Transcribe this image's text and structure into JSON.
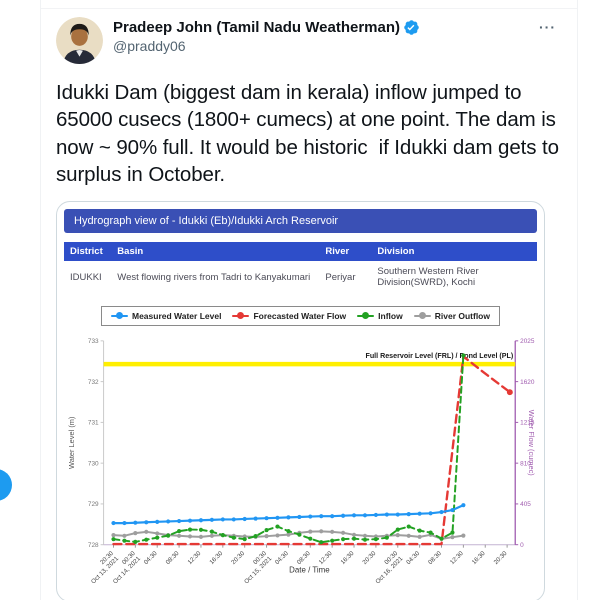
{
  "tweet": {
    "author": {
      "name": "Pradeep John (Tamil Nadu Weatherman)",
      "handle": "@praddy06"
    },
    "more_glyph": "···",
    "body": "Idukki Dam (biggest dam in kerala) inflow jumped to 65000 cusecs (1800+ cumecs) at one point. The dam is now ~ 90% full. It would be historic  if Idukki dam gets to surplus in October.",
    "accent_color": "#1d9bf0"
  },
  "media_card": {
    "banner": "Hydrograph view of - Idukki (Eb)/Idukki Arch Reservoir",
    "banner_color": "#3a50b5",
    "table": {
      "header_color": "#2e4ec9",
      "headers": [
        "District",
        "Basin",
        "River",
        "Division"
      ],
      "row": [
        "IDUKKI",
        "West flowing rivers from Tadri to Kanyakumari",
        "Periyar",
        "Southern Western River Division(SWRD), Kochi"
      ]
    }
  },
  "chart_data": {
    "type": "line",
    "xlabel": "Date / Time",
    "ylabel_left": "Water Level (m)",
    "ylabel_right": "Water Flow (cumec)",
    "left_axis": {
      "min": 728,
      "max": 733,
      "ticks": [
        728,
        729,
        730,
        731,
        732,
        733
      ],
      "color": "#777777"
    },
    "right_axis": {
      "min": 0,
      "max": 2025,
      "ticks": [
        0,
        405,
        810,
        1215,
        1620,
        2025
      ],
      "color": "#a05caf"
    },
    "frl": {
      "value": 732.43,
      "label": "Full Reservoir Level (FRL) / Pond Level (PL)",
      "color": "#ffef00"
    },
    "x_ticks": [
      {
        "h": 0,
        "t": "20:30",
        "d": "Oct 13, 2021"
      },
      {
        "h": 4,
        "t": "00:30",
        "d": "Oct 14, 2021"
      },
      {
        "h": 8,
        "t": "04:30"
      },
      {
        "h": 12,
        "t": "08:30"
      },
      {
        "h": 16,
        "t": "12:30"
      },
      {
        "h": 20,
        "t": "16:30"
      },
      {
        "h": 24,
        "t": "20:30"
      },
      {
        "h": 28,
        "t": "00:30",
        "d": "Oct 15, 2021"
      },
      {
        "h": 32,
        "t": "04:30"
      },
      {
        "h": 36,
        "t": "08:30"
      },
      {
        "h": 40,
        "t": "12:30"
      },
      {
        "h": 44,
        "t": "16:30"
      },
      {
        "h": 48,
        "t": "20:30"
      },
      {
        "h": 52,
        "t": "00:30",
        "d": "Oct 16, 2021"
      },
      {
        "h": 56,
        "t": "04:30"
      },
      {
        "h": 60,
        "t": "08:30"
      },
      {
        "h": 64,
        "t": "12:30"
      },
      {
        "h": 68,
        "t": "16:30"
      },
      {
        "h": 72,
        "t": "20:30"
      }
    ],
    "series": [
      {
        "name": "Measured Water Level",
        "color": "#2196f3",
        "axis": "left",
        "dash": "",
        "marker": "all",
        "width": 2.2,
        "points": [
          [
            0,
            728.53
          ],
          [
            2,
            728.53
          ],
          [
            4,
            728.54
          ],
          [
            6,
            728.55
          ],
          [
            8,
            728.56
          ],
          [
            10,
            728.57
          ],
          [
            12,
            728.58
          ],
          [
            14,
            728.59
          ],
          [
            16,
            728.6
          ],
          [
            18,
            728.61
          ],
          [
            20,
            728.62
          ],
          [
            22,
            728.62
          ],
          [
            24,
            728.63
          ],
          [
            26,
            728.64
          ],
          [
            28,
            728.65
          ],
          [
            30,
            728.66
          ],
          [
            32,
            728.67
          ],
          [
            34,
            728.68
          ],
          [
            36,
            728.69
          ],
          [
            38,
            728.7
          ],
          [
            40,
            728.7
          ],
          [
            42,
            728.71
          ],
          [
            44,
            728.72
          ],
          [
            46,
            728.72
          ],
          [
            48,
            728.73
          ],
          [
            50,
            728.74
          ],
          [
            52,
            728.74
          ],
          [
            54,
            728.75
          ],
          [
            56,
            728.76
          ],
          [
            58,
            728.77
          ],
          [
            60,
            728.8
          ],
          [
            62,
            728.85
          ],
          [
            64,
            728.97
          ]
        ]
      },
      {
        "name": "Forecasted Water Flow",
        "color": "#e53935",
        "axis": "right",
        "dash": "8,5",
        "marker": "last",
        "width": 2.4,
        "points": [
          [
            0,
            6
          ],
          [
            4,
            6
          ],
          [
            8,
            6
          ],
          [
            12,
            6
          ],
          [
            16,
            6
          ],
          [
            20,
            6
          ],
          [
            24,
            6
          ],
          [
            28,
            6
          ],
          [
            32,
            6
          ],
          [
            36,
            6
          ],
          [
            40,
            6
          ],
          [
            44,
            6
          ],
          [
            48,
            6
          ],
          [
            52,
            6
          ],
          [
            56,
            6
          ],
          [
            60,
            6
          ],
          [
            64,
            1870
          ],
          [
            68,
            1700
          ],
          [
            72.5,
            1515
          ]
        ]
      },
      {
        "name": "Inflow",
        "color": "#22a122",
        "axis": "right",
        "dash": "6,4",
        "marker": "all",
        "width": 2,
        "points": [
          [
            0,
            55
          ],
          [
            2,
            40
          ],
          [
            4,
            28
          ],
          [
            6,
            50
          ],
          [
            8,
            70
          ],
          [
            10,
            90
          ],
          [
            12,
            135
          ],
          [
            14,
            150
          ],
          [
            16,
            148
          ],
          [
            18,
            130
          ],
          [
            20,
            95
          ],
          [
            22,
            70
          ],
          [
            24,
            55
          ],
          [
            26,
            85
          ],
          [
            28,
            145
          ],
          [
            30,
            180
          ],
          [
            32,
            135
          ],
          [
            34,
            100
          ],
          [
            36,
            60
          ],
          [
            38,
            25
          ],
          [
            40,
            40
          ],
          [
            42,
            55
          ],
          [
            44,
            60
          ],
          [
            46,
            50
          ],
          [
            48,
            55
          ],
          [
            50,
            70
          ],
          [
            52,
            150
          ],
          [
            54,
            180
          ],
          [
            56,
            140
          ],
          [
            58,
            120
          ],
          [
            60,
            60
          ],
          [
            62,
            120
          ],
          [
            64,
            1880
          ]
        ]
      },
      {
        "name": "River Outflow",
        "color": "#9e9e9e",
        "axis": "right",
        "dash": "",
        "marker": "all",
        "width": 2,
        "points": [
          [
            0,
            95
          ],
          [
            2,
            88
          ],
          [
            4,
            115
          ],
          [
            6,
            128
          ],
          [
            8,
            112
          ],
          [
            10,
            95
          ],
          [
            12,
            88
          ],
          [
            14,
            82
          ],
          [
            16,
            78
          ],
          [
            18,
            88
          ],
          [
            20,
            95
          ],
          [
            22,
            88
          ],
          [
            24,
            82
          ],
          [
            26,
            78
          ],
          [
            28,
            85
          ],
          [
            30,
            92
          ],
          [
            32,
            100
          ],
          [
            34,
            118
          ],
          [
            36,
            130
          ],
          [
            38,
            133
          ],
          [
            40,
            128
          ],
          [
            42,
            118
          ],
          [
            44,
            98
          ],
          [
            46,
            88
          ],
          [
            48,
            82
          ],
          [
            50,
            88
          ],
          [
            52,
            95
          ],
          [
            54,
            88
          ],
          [
            56,
            78
          ],
          [
            58,
            98
          ],
          [
            60,
            58
          ],
          [
            62,
            75
          ],
          [
            64,
            90
          ]
        ]
      }
    ]
  }
}
